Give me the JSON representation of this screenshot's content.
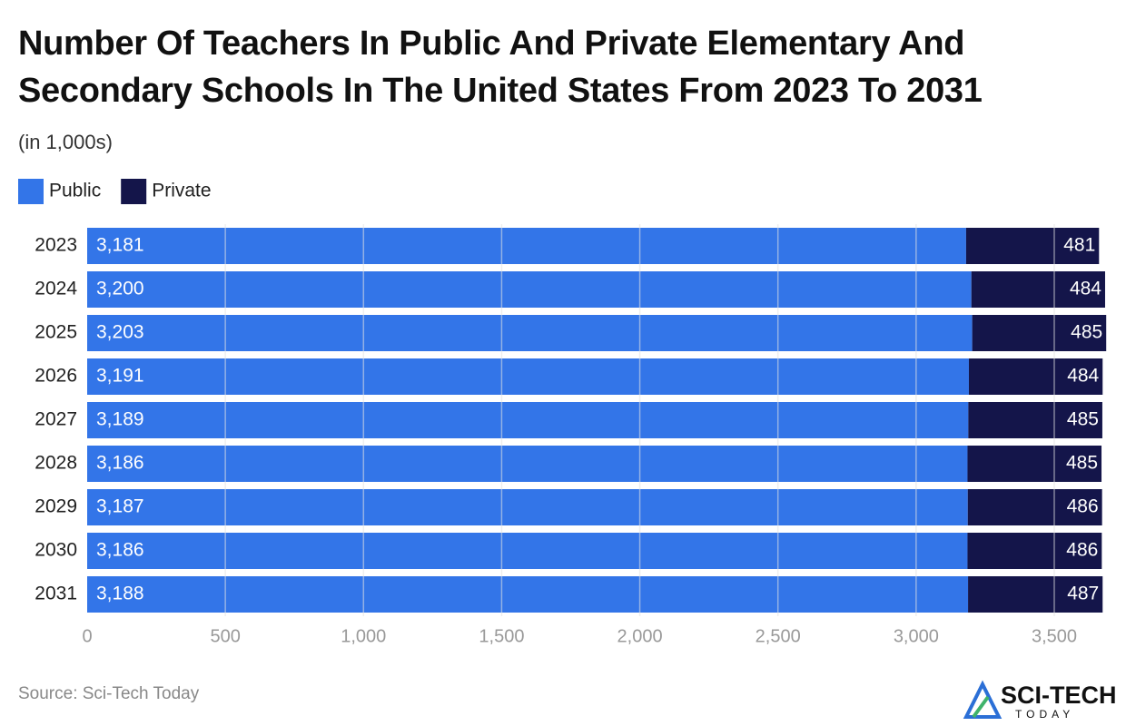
{
  "chart_data": {
    "type": "stacked_bar_horizontal",
    "title": "Number Of Teachers In Public And Private Elementary And Secondary Schools In The United States From 2023 To 2031",
    "subtitle": "(in 1,000s)",
    "categories": [
      "2023",
      "2024",
      "2025",
      "2026",
      "2027",
      "2028",
      "2029",
      "2030",
      "2031"
    ],
    "series": [
      {
        "name": "Public",
        "color": "#3375e8",
        "values": [
          3181,
          3200,
          3203,
          3191,
          3189,
          3186,
          3187,
          3186,
          3188
        ],
        "value_labels": [
          "3,181",
          "3,200",
          "3,203",
          "3,191",
          "3,189",
          "3,186",
          "3,187",
          "3,186",
          "3,188"
        ]
      },
      {
        "name": "Private",
        "color": "#14154a",
        "values": [
          481,
          484,
          485,
          484,
          485,
          485,
          486,
          486,
          487
        ]
      }
    ],
    "xlim": [
      0,
      3700
    ],
    "xticks": [
      0,
      500,
      {
        "value": 1000,
        "label": "1,000"
      },
      {
        "value": 1500,
        "label": "1,500"
      },
      {
        "value": 2000,
        "label": "2,000"
      },
      {
        "value": 2500,
        "label": "2,500"
      },
      {
        "value": 3000,
        "label": "3,000"
      },
      {
        "value": 3500,
        "label": "3,500"
      }
    ],
    "grid": true,
    "legend": "top-left",
    "source": "Source: Sci-Tech Today",
    "brand": "SCI-TECH",
    "brand_tagline": "TODAY"
  }
}
